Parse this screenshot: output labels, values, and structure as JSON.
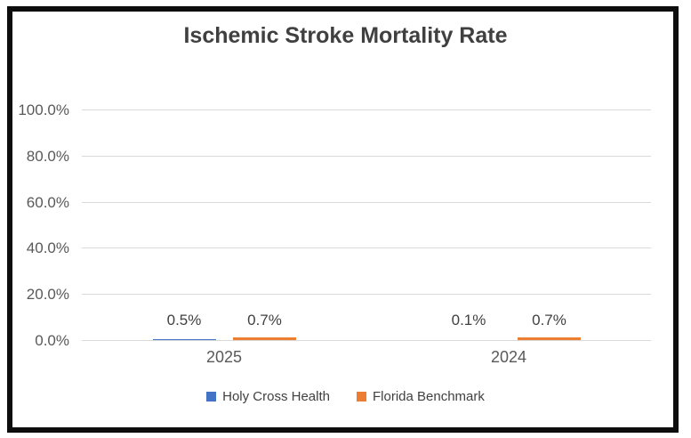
{
  "chart_data": {
    "type": "bar",
    "title": "Ischemic Stroke Mortality Rate",
    "categories": [
      "2025",
      "2024"
    ],
    "series": [
      {
        "name": "Holy Cross Health",
        "color": "#4472C4",
        "values": [
          0.5,
          0.1
        ],
        "value_labels": [
          "0.5%",
          "0.1%"
        ]
      },
      {
        "name": "Florida Benchmark",
        "color": "#ED7D31",
        "values": [
          0.7,
          0.7
        ],
        "value_labels": [
          "0.7%",
          "0.7%"
        ]
      }
    ],
    "y_axis": {
      "tick_labels": [
        "100.0%",
        "80.0%",
        "60.0%",
        "40.0%",
        "20.0%",
        "0.0%"
      ],
      "tick_values": [
        100,
        80,
        60,
        40,
        20,
        0
      ],
      "ylim": [
        0,
        100
      ],
      "unit": "%"
    },
    "grid": true,
    "legend_position": "bottom"
  },
  "style": {
    "background": "#ffffff",
    "frame_border_color": "#0d0d0d",
    "gridline_color": "#d9d9d9",
    "title_color": "#404040",
    "axis_text_color": "#595959",
    "data_label_color": "#404040",
    "series_colors": [
      "#4472C4",
      "#ED7D31"
    ]
  }
}
